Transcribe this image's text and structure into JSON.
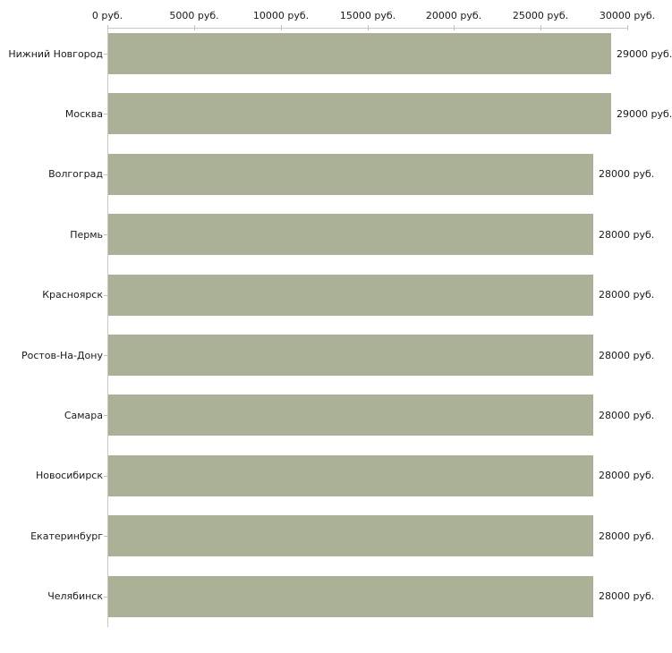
{
  "chart_data": {
    "type": "bar",
    "orientation": "horizontal",
    "categories": [
      "Нижний Новгород",
      "Москва",
      "Волгоград",
      "Пермь",
      "Красноярск",
      "Ростов-На-Дону",
      "Самара",
      "Новосибирск",
      "Екатеринбург",
      "Челябинск"
    ],
    "values": [
      29000,
      29000,
      28000,
      28000,
      28000,
      28000,
      28000,
      28000,
      28000,
      28000
    ],
    "value_labels": [
      "29000 руб.",
      "29000 руб.",
      "28000 руб.",
      "28000 руб.",
      "28000 руб.",
      "28000 руб.",
      "28000 руб.",
      "28000 руб.",
      "28000 руб.",
      "28000 руб."
    ],
    "x_ticks": [
      {
        "value": 0,
        "label": "0 руб."
      },
      {
        "value": 5000,
        "label": "5000 руб."
      },
      {
        "value": 10000,
        "label": "10000 руб."
      },
      {
        "value": 15000,
        "label": "15000 руб."
      },
      {
        "value": 20000,
        "label": "20000 руб."
      },
      {
        "value": 25000,
        "label": "25000 руб."
      },
      {
        "value": 30000,
        "label": "30000 руб."
      }
    ],
    "xlim": [
      0,
      30000
    ],
    "grid": false,
    "legend": false,
    "legend_position": "none",
    "colors": {
      "bar": "#abb197",
      "axis": "#c8c8c0",
      "tick": "#c6c69c",
      "text": "#1a1a1a",
      "background": "#ffffff"
    }
  }
}
